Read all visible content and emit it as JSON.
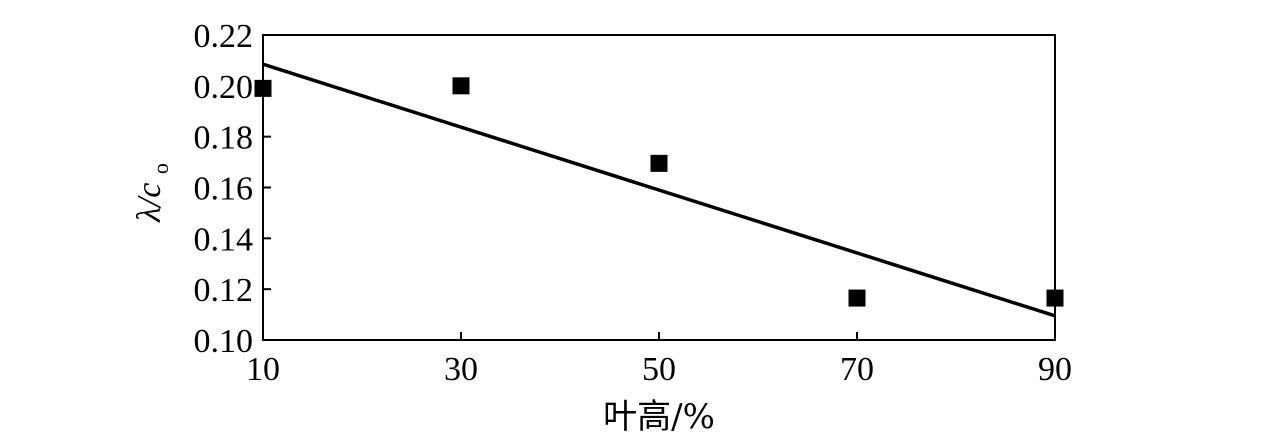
{
  "chart_data": {
    "type": "scatter",
    "title": "",
    "xlabel": "叶高/%",
    "ylabel": {
      "main": "λ/c",
      "subscript": "o"
    },
    "xlim": [
      10,
      90
    ],
    "ylim": [
      0.1,
      0.22
    ],
    "x_ticks": [
      "10",
      "30",
      "50",
      "70",
      "90"
    ],
    "y_ticks": [
      "0.10",
      "0.12",
      "0.14",
      "0.16",
      "0.18",
      "0.20",
      "0.22"
    ],
    "grid": false,
    "legend": "none",
    "series": [
      {
        "type": "scatter",
        "marker": "square",
        "color": "#000000",
        "x": [
          10,
          30,
          50,
          70,
          90
        ],
        "y": [
          0.199,
          0.2,
          0.1695,
          0.1165,
          0.1165
        ]
      },
      {
        "type": "line",
        "color": "#000000",
        "x": [
          10,
          90
        ],
        "y": [
          0.2085,
          0.1095
        ]
      }
    ]
  }
}
